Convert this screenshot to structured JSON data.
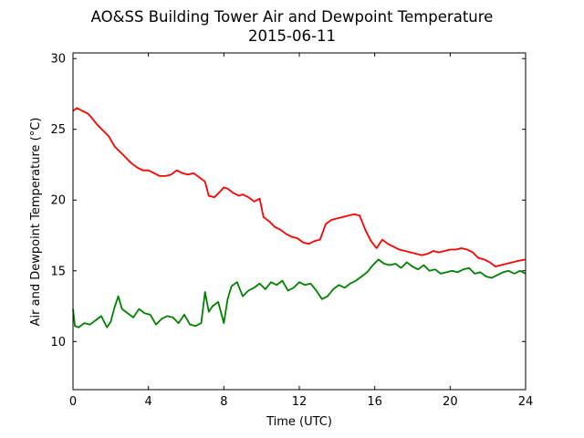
{
  "chart_data": {
    "type": "line",
    "title": "AO&SS Building Tower Air and Dewpoint Temperature",
    "subtitle": "2015-06-11",
    "xlabel": "Time (UTC)",
    "ylabel": "Air and Dewpoint Temperature (°C)",
    "xlim": [
      0,
      24
    ],
    "ylim": [
      6.6,
      30.4
    ],
    "xticks": [
      0,
      4,
      8,
      12,
      16,
      20,
      24
    ],
    "yticks": [
      10,
      15,
      20,
      25,
      30
    ],
    "grid": false,
    "legend": "none",
    "series": [
      {
        "color": "#ff0000",
        "x": [
          0,
          0.2,
          0.5,
          0.8,
          1.0,
          1.3,
          1.6,
          1.9,
          2.2,
          2.5,
          2.8,
          3.1,
          3.4,
          3.7,
          4.0,
          4.3,
          4.6,
          4.9,
          5.2,
          5.5,
          5.8,
          6.1,
          6.4,
          6.7,
          7.0,
          7.2,
          7.5,
          7.8,
          8.0,
          8.2,
          8.5,
          8.8,
          9.0,
          9.3,
          9.6,
          9.9,
          10.1,
          10.4,
          10.7,
          11.0,
          11.3,
          11.6,
          11.9,
          12.2,
          12.5,
          12.8,
          13.1,
          13.4,
          13.7,
          14.0,
          14.3,
          14.6,
          14.9,
          15.2,
          15.5,
          15.8,
          16.1,
          16.4,
          16.7,
          17.0,
          17.3,
          17.6,
          17.9,
          18.2,
          18.5,
          18.8,
          19.1,
          19.4,
          19.7,
          20.0,
          20.3,
          20.6,
          20.9,
          21.2,
          21.5,
          21.8,
          22.1,
          22.4,
          22.7,
          23.0,
          23.3,
          23.6,
          24.0
        ],
        "values": [
          26.3,
          26.5,
          26.3,
          26.1,
          25.8,
          25.3,
          24.9,
          24.5,
          23.8,
          23.4,
          23.0,
          22.6,
          22.3,
          22.1,
          22.1,
          21.9,
          21.7,
          21.7,
          21.8,
          22.1,
          21.9,
          21.8,
          21.9,
          21.6,
          21.3,
          20.3,
          20.2,
          20.6,
          20.9,
          20.8,
          20.5,
          20.3,
          20.4,
          20.2,
          19.9,
          20.1,
          18.8,
          18.5,
          18.1,
          17.9,
          17.6,
          17.4,
          17.3,
          17.0,
          16.9,
          17.1,
          17.2,
          18.3,
          18.6,
          18.7,
          18.8,
          18.9,
          19.0,
          18.9,
          17.9,
          17.1,
          16.6,
          17.2,
          16.9,
          16.7,
          16.5,
          16.4,
          16.3,
          16.2,
          16.1,
          16.2,
          16.4,
          16.3,
          16.4,
          16.5,
          16.5,
          16.6,
          16.5,
          16.3,
          15.9,
          15.8,
          15.6,
          15.3,
          15.4,
          15.5,
          15.6,
          15.7,
          15.8
        ]
      },
      {
        "color": "#008000",
        "x": [
          0,
          0.1,
          0.3,
          0.6,
          0.9,
          1.2,
          1.5,
          1.8,
          2.0,
          2.2,
          2.4,
          2.6,
          2.9,
          3.2,
          3.5,
          3.8,
          4.1,
          4.4,
          4.7,
          5.0,
          5.3,
          5.6,
          5.9,
          6.2,
          6.5,
          6.8,
          7.0,
          7.2,
          7.4,
          7.7,
          8.0,
          8.2,
          8.4,
          8.7,
          9.0,
          9.3,
          9.6,
          9.9,
          10.2,
          10.5,
          10.8,
          11.1,
          11.4,
          11.7,
          12.0,
          12.3,
          12.6,
          12.9,
          13.2,
          13.5,
          13.8,
          14.1,
          14.4,
          14.7,
          15.0,
          15.3,
          15.6,
          15.9,
          16.2,
          16.5,
          16.8,
          17.1,
          17.4,
          17.7,
          18.0,
          18.3,
          18.6,
          18.9,
          19.2,
          19.5,
          19.8,
          20.1,
          20.4,
          20.7,
          21.0,
          21.3,
          21.6,
          21.9,
          22.2,
          22.5,
          22.8,
          23.1,
          23.4,
          23.7,
          24.0
        ],
        "values": [
          12.3,
          11.1,
          11.0,
          11.3,
          11.2,
          11.5,
          11.8,
          11.0,
          11.4,
          12.4,
          13.2,
          12.3,
          12.0,
          11.7,
          12.3,
          12.0,
          11.9,
          11.2,
          11.6,
          11.8,
          11.7,
          11.3,
          11.9,
          11.2,
          11.1,
          11.3,
          13.5,
          12.1,
          12.5,
          12.8,
          11.3,
          13.0,
          13.9,
          14.2,
          13.2,
          13.6,
          13.8,
          14.1,
          13.7,
          14.2,
          14.0,
          14.3,
          13.6,
          13.8,
          14.2,
          14.0,
          14.1,
          13.6,
          13.0,
          13.2,
          13.7,
          14.0,
          13.8,
          14.1,
          14.3,
          14.6,
          14.9,
          15.4,
          15.8,
          15.5,
          15.4,
          15.5,
          15.2,
          15.6,
          15.3,
          15.1,
          15.4,
          15.0,
          15.1,
          14.8,
          14.9,
          15.0,
          14.9,
          15.1,
          15.2,
          14.8,
          14.9,
          14.6,
          14.5,
          14.7,
          14.9,
          15.0,
          14.8,
          15.0,
          14.8
        ]
      }
    ]
  }
}
